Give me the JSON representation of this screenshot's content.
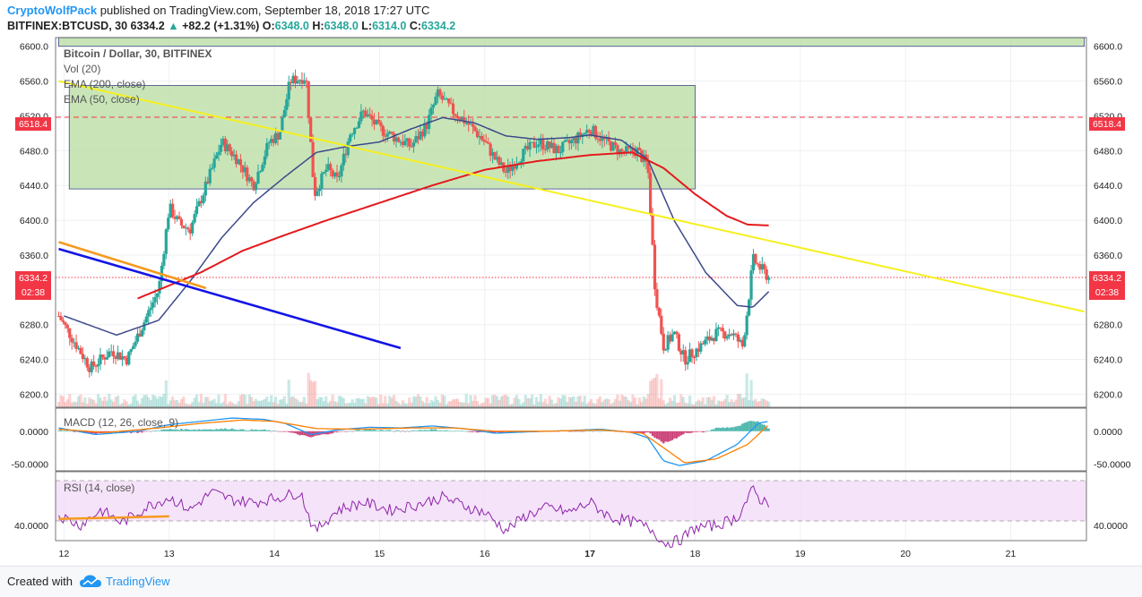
{
  "header": {
    "brand": "CryptoWolfPack",
    "published": " published on TradingView.com, September 18, 2018 17:27 UTC",
    "symbol": "BITFINEX:BTCUSD, 30",
    "price": "6334.2",
    "change": "+82.2 (+1.31%)",
    "o_label": "O:",
    "o_value": "6348.0",
    "h_label": "H:",
    "h_value": "6348.0",
    "l_label": "L:",
    "l_value": "6314.0",
    "c_label": "C:",
    "c_value": "6334.2"
  },
  "legend": {
    "title": "Bitcoin / Dollar, 30, BITFINEX",
    "vol": "Vol (20)",
    "ema200": "EMA (200, close)",
    "ema50": "EMA (50, close)",
    "macd": "MACD (12, 26, close, 9)",
    "rsi": "RSI (14, close)"
  },
  "price_tags": {
    "resistance": "6518.4",
    "last": "6334.2",
    "countdown": "02:38"
  },
  "footer": {
    "created": "Created with",
    "brand": "TradingView"
  },
  "colors": {
    "up": "#26a69a",
    "down": "#ef5350",
    "ema50": "#3c4a8a",
    "ema200": "#e31a1c",
    "trend_yellow": "#f5f01e",
    "trend_blue": "#1414e6",
    "trend_orange": "#f59a1e",
    "zone_fill": "#b7dca0",
    "rsi_band": "#f2dcf7",
    "rsi_line": "#8e24aa",
    "macd_line": "#2196f3",
    "signal_line": "#ff7f00",
    "price_tag": "#f23645"
  },
  "chart_data": {
    "type": "candlestick",
    "symbol": "BTCUSD",
    "exchange": "BITFINEX",
    "interval": "30",
    "x_ticks": [
      "12",
      "13",
      "14",
      "15",
      "16",
      "17",
      "18",
      "19",
      "20",
      "21"
    ],
    "price_axis": {
      "ticks": [
        "6600.0",
        "6560.0",
        "6520.0",
        "6480.0",
        "6440.0",
        "6400.0",
        "6360.0",
        "6320.0",
        "6280.0",
        "6240.0",
        "6200.0"
      ],
      "ylim": [
        6185,
        6610
      ]
    },
    "macd_axis": {
      "ticks": [
        "0.0000",
        "-50.0000"
      ],
      "ylim": [
        -60,
        35
      ]
    },
    "rsi_axis": {
      "ticks": [
        "40.0000"
      ],
      "ylim": [
        28,
        82
      ]
    },
    "zones": [
      {
        "name": "upper-zone",
        "x_start": 11.95,
        "x_end": 21.7,
        "y_low": 6600,
        "y_high": 6617
      },
      {
        "name": "range-zone",
        "x_start": 12.05,
        "x_end": 18.0,
        "y_low": 6436,
        "y_high": 6555
      }
    ],
    "horizontal_lines": [
      {
        "name": "resistance",
        "value": 6518.4,
        "style": "dashed"
      },
      {
        "name": "last-price",
        "value": 6334.2,
        "style": "dotted"
      }
    ],
    "trend_lines": [
      {
        "name": "yellow-trend",
        "x1": 11.95,
        "y1": 6560,
        "x2": 21.7,
        "y2": 6295
      },
      {
        "name": "orange-trend",
        "x1": 11.95,
        "y1": 6375,
        "x2": 13.35,
        "y2": 6322
      },
      {
        "name": "blue-trend",
        "x1": 11.95,
        "y1": 6367,
        "x2": 15.2,
        "y2": 6253
      }
    ],
    "price_anchors": [
      [
        11.95,
        6290
      ],
      [
        12.1,
        6260
      ],
      [
        12.25,
        6230
      ],
      [
        12.45,
        6250
      ],
      [
        12.6,
        6240
      ],
      [
        12.75,
        6280
      ],
      [
        12.9,
        6320
      ],
      [
        13.0,
        6415
      ],
      [
        13.1,
        6395
      ],
      [
        13.2,
        6390
      ],
      [
        13.35,
        6440
      ],
      [
        13.5,
        6490
      ],
      [
        13.65,
        6470
      ],
      [
        13.8,
        6440
      ],
      [
        13.95,
        6490
      ],
      [
        14.05,
        6500
      ],
      [
        14.15,
        6560
      ],
      [
        14.3,
        6565
      ],
      [
        14.38,
        6430
      ],
      [
        14.5,
        6460
      ],
      [
        14.6,
        6445
      ],
      [
        14.72,
        6500
      ],
      [
        14.85,
        6525
      ],
      [
        15.0,
        6505
      ],
      [
        15.15,
        6495
      ],
      [
        15.3,
        6485
      ],
      [
        15.45,
        6510
      ],
      [
        15.55,
        6545
      ],
      [
        15.7,
        6525
      ],
      [
        15.85,
        6510
      ],
      [
        16.0,
        6490
      ],
      [
        16.1,
        6470
      ],
      [
        16.2,
        6455
      ],
      [
        16.35,
        6475
      ],
      [
        16.5,
        6490
      ],
      [
        16.7,
        6480
      ],
      [
        16.85,
        6492
      ],
      [
        17.0,
        6505
      ],
      [
        17.15,
        6490
      ],
      [
        17.3,
        6478
      ],
      [
        17.45,
        6480
      ],
      [
        17.55,
        6462
      ],
      [
        17.62,
        6320
      ],
      [
        17.7,
        6255
      ],
      [
        17.8,
        6270
      ],
      [
        17.9,
        6240
      ],
      [
        18.05,
        6255
      ],
      [
        18.2,
        6270
      ],
      [
        18.35,
        6270
      ],
      [
        18.45,
        6255
      ],
      [
        18.5,
        6300
      ],
      [
        18.55,
        6355
      ],
      [
        18.62,
        6345
      ],
      [
        18.7,
        6334
      ]
    ],
    "ema50_anchors": [
      [
        12.0,
        6290
      ],
      [
        12.5,
        6268
      ],
      [
        12.9,
        6285
      ],
      [
        13.2,
        6330
      ],
      [
        13.5,
        6380
      ],
      [
        13.8,
        6420
      ],
      [
        14.1,
        6450
      ],
      [
        14.4,
        6478
      ],
      [
        14.7,
        6485
      ],
      [
        15.0,
        6490
      ],
      [
        15.3,
        6505
      ],
      [
        15.6,
        6518
      ],
      [
        15.9,
        6512
      ],
      [
        16.2,
        6497
      ],
      [
        16.5,
        6493
      ],
      [
        16.8,
        6495
      ],
      [
        17.0,
        6498
      ],
      [
        17.3,
        6492
      ],
      [
        17.55,
        6470
      ],
      [
        17.8,
        6400
      ],
      [
        18.1,
        6340
      ],
      [
        18.4,
        6302
      ],
      [
        18.55,
        6300
      ],
      [
        18.7,
        6318
      ]
    ],
    "ema200_anchors": [
      [
        12.7,
        6310
      ],
      [
        13.0,
        6325
      ],
      [
        13.3,
        6340
      ],
      [
        13.7,
        6365
      ],
      [
        14.1,
        6383
      ],
      [
        14.5,
        6400
      ],
      [
        15.0,
        6420
      ],
      [
        15.5,
        6440
      ],
      [
        16.0,
        6458
      ],
      [
        16.5,
        6468
      ],
      [
        17.0,
        6475
      ],
      [
        17.4,
        6478
      ],
      [
        17.7,
        6460
      ],
      [
        18.0,
        6430
      ],
      [
        18.3,
        6405
      ],
      [
        18.5,
        6395
      ],
      [
        18.7,
        6394
      ]
    ],
    "macd_anchors": [
      [
        11.95,
        5
      ],
      [
        12.3,
        -5
      ],
      [
        12.7,
        0
      ],
      [
        13.0,
        10
      ],
      [
        13.3,
        15
      ],
      [
        13.6,
        20
      ],
      [
        13.9,
        18
      ],
      [
        14.1,
        12
      ],
      [
        14.35,
        -5
      ],
      [
        14.6,
        2
      ],
      [
        14.9,
        6
      ],
      [
        15.2,
        5
      ],
      [
        15.5,
        8
      ],
      [
        15.8,
        4
      ],
      [
        16.1,
        -3
      ],
      [
        16.4,
        -1
      ],
      [
        16.8,
        1
      ],
      [
        17.1,
        3
      ],
      [
        17.4,
        -2
      ],
      [
        17.55,
        -10
      ],
      [
        17.7,
        -45
      ],
      [
        17.85,
        -52
      ],
      [
        18.1,
        -45
      ],
      [
        18.4,
        -20
      ],
      [
        18.6,
        12
      ],
      [
        18.7,
        15
      ]
    ],
    "signal_anchors": [
      [
        11.95,
        3
      ],
      [
        12.4,
        -2
      ],
      [
        12.9,
        5
      ],
      [
        13.3,
        12
      ],
      [
        13.7,
        17
      ],
      [
        14.0,
        15
      ],
      [
        14.4,
        4
      ],
      [
        14.8,
        3
      ],
      [
        15.3,
        5
      ],
      [
        15.7,
        5
      ],
      [
        16.1,
        0
      ],
      [
        16.6,
        0
      ],
      [
        17.1,
        2
      ],
      [
        17.5,
        -3
      ],
      [
        17.7,
        -25
      ],
      [
        17.9,
        -48
      ],
      [
        18.2,
        -42
      ],
      [
        18.5,
        -20
      ],
      [
        18.7,
        10
      ]
    ],
    "rsi_anchors": [
      [
        11.95,
        48
      ],
      [
        12.15,
        40
      ],
      [
        12.35,
        52
      ],
      [
        12.55,
        42
      ],
      [
        12.8,
        55
      ],
      [
        13.0,
        62
      ],
      [
        13.2,
        52
      ],
      [
        13.4,
        66
      ],
      [
        13.6,
        60
      ],
      [
        13.8,
        58
      ],
      [
        14.05,
        62
      ],
      [
        14.25,
        66
      ],
      [
        14.38,
        35
      ],
      [
        14.6,
        52
      ],
      [
        14.85,
        58
      ],
      [
        15.1,
        52
      ],
      [
        15.35,
        56
      ],
      [
        15.6,
        62
      ],
      [
        15.85,
        54
      ],
      [
        16.0,
        50
      ],
      [
        16.2,
        36
      ],
      [
        16.4,
        48
      ],
      [
        16.6,
        54
      ],
      [
        16.8,
        50
      ],
      [
        17.0,
        58
      ],
      [
        17.2,
        46
      ],
      [
        17.45,
        42
      ],
      [
        17.6,
        36
      ],
      [
        17.7,
        26
      ],
      [
        17.85,
        28
      ],
      [
        18.0,
        38
      ],
      [
        18.2,
        40
      ],
      [
        18.4,
        46
      ],
      [
        18.55,
        68
      ],
      [
        18.62,
        60
      ],
      [
        18.7,
        58
      ]
    ],
    "rsi_orange_line": {
      "x1": 11.95,
      "y1": 45,
      "x2": 13.0,
      "y2": 47
    }
  }
}
